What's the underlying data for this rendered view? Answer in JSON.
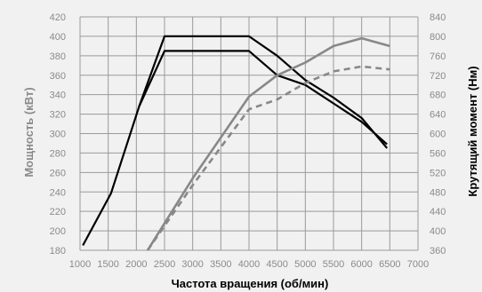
{
  "chart_data": {
    "type": "line",
    "xlabel": "Частота вращения (об/мин)",
    "ylabel_left": "Мощность (кВт)",
    "ylabel_right": "Крутящий момент (Нм)",
    "xlim": [
      1000,
      7000
    ],
    "ylim_left": [
      180,
      420
    ],
    "ylim_right": [
      360,
      840
    ],
    "x_ticks": [
      1000,
      1500,
      2000,
      2500,
      3000,
      3500,
      4000,
      4500,
      5000,
      5500,
      6000,
      6500,
      7000
    ],
    "y_left_ticks": [
      180,
      200,
      220,
      240,
      260,
      280,
      300,
      320,
      340,
      360,
      380,
      400,
      420
    ],
    "y_right_ticks": [
      360,
      400,
      440,
      480,
      520,
      560,
      600,
      640,
      680,
      720,
      760,
      800,
      840
    ],
    "grid": true,
    "series": [
      {
        "axis": "right",
        "color": "#000000",
        "dashed": false,
        "points": [
          [
            1050,
            370
          ],
          [
            1550,
            477
          ],
          [
            2050,
            656
          ],
          [
            2500,
            800
          ],
          [
            4000,
            800
          ],
          [
            4500,
            760
          ],
          [
            5000,
            710
          ],
          [
            5500,
            674
          ],
          [
            6000,
            632
          ],
          [
            6450,
            570
          ]
        ]
      },
      {
        "axis": "right",
        "color": "#000000",
        "dashed": false,
        "points": [
          [
            2050,
            656
          ],
          [
            2500,
            770
          ],
          [
            4000,
            770
          ],
          [
            4500,
            720
          ],
          [
            5000,
            700
          ],
          [
            5500,
            662
          ],
          [
            6000,
            624
          ],
          [
            6450,
            578
          ]
        ]
      },
      {
        "axis": "left",
        "color": "#888888",
        "dashed": false,
        "points": [
          [
            2200,
            180
          ],
          [
            3000,
            254
          ],
          [
            4000,
            338
          ],
          [
            4500,
            360
          ],
          [
            5000,
            373
          ],
          [
            5500,
            390
          ],
          [
            6000,
            398
          ],
          [
            6500,
            390
          ]
        ]
      },
      {
        "axis": "left",
        "color": "#888888",
        "dashed": true,
        "points": [
          [
            2200,
            180
          ],
          [
            3000,
            247
          ],
          [
            4000,
            325
          ],
          [
            4500,
            335
          ],
          [
            5000,
            352
          ],
          [
            5500,
            364
          ],
          [
            6000,
            369
          ],
          [
            6500,
            366
          ]
        ]
      }
    ]
  },
  "colors": {
    "background": "#f1f1f1",
    "grid": "#9a9a9a",
    "left_axis_title": "#8a8a8a",
    "right_axis_title": "#000000"
  }
}
